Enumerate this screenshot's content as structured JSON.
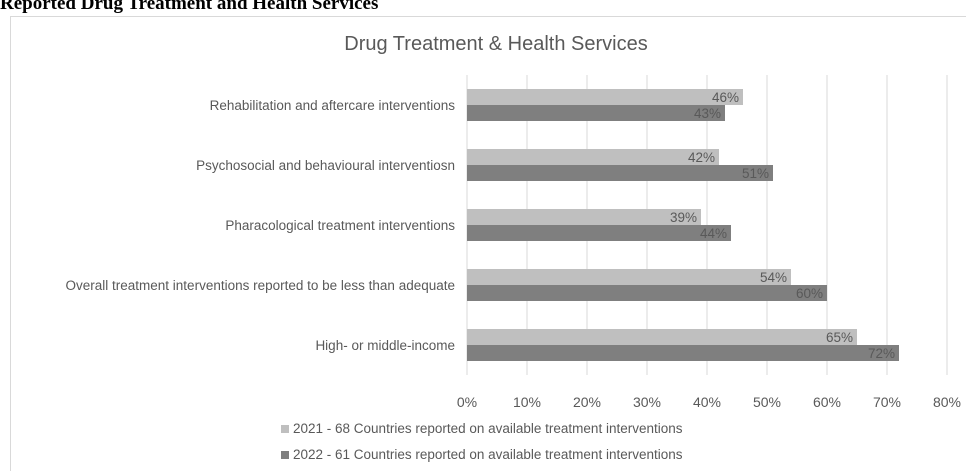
{
  "heading": "Reported Drug Treatment and Health Services",
  "chart_data": {
    "type": "bar",
    "orientation": "horizontal",
    "title": "Drug Treatment & Health Services",
    "categories": [
      "Rehabilitation and aftercare interventions",
      "Psychosocial and behavioural interventiosn",
      "Pharacological treatment interventions",
      "Overall treatment interventions reported to be less than adequate",
      "High- or middle-income"
    ],
    "series": [
      {
        "name": "2021 - 68 Countries reported on available treatment interventions",
        "values": [
          46,
          42,
          39,
          54,
          65
        ],
        "labels": [
          "46%",
          "42%",
          "39%",
          "54%",
          "65%"
        ],
        "color": "#bfbfbf"
      },
      {
        "name": "2022 - 61 Countries reported on available treatment interventions",
        "values": [
          43,
          51,
          44,
          60,
          72
        ],
        "labels": [
          "43%",
          "51%",
          "44%",
          "60%",
          "72%"
        ],
        "color": "#7f7f7f"
      }
    ],
    "x_ticks": [
      "0%",
      "10%",
      "20%",
      "30%",
      "40%",
      "50%",
      "60%",
      "70%",
      "80%"
    ],
    "xlim": [
      0,
      80
    ],
    "grid": true,
    "legend_position": "bottom"
  }
}
